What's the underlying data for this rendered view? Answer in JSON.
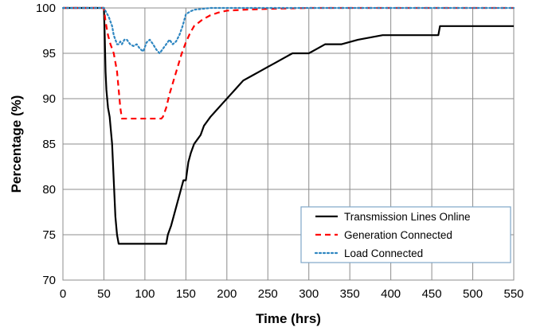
{
  "chart_data": {
    "type": "line",
    "xlabel": "Time (hrs)",
    "ylabel": "Percentage (%)",
    "xlim": [
      0,
      550
    ],
    "ylim": [
      70,
      100
    ],
    "xticks": [
      0,
      50,
      100,
      150,
      200,
      250,
      300,
      350,
      400,
      450,
      500,
      550
    ],
    "yticks": [
      70,
      75,
      80,
      85,
      90,
      95,
      100
    ],
    "grid": true,
    "legend_position": "bottom-right",
    "series": [
      {
        "name": "Transmission Lines Online",
        "color": "#000000",
        "dash": "solid",
        "x": [
          0,
          50,
          51,
          52,
          53,
          54,
          55,
          56,
          57,
          58,
          59,
          60,
          61,
          62,
          63,
          64,
          65,
          66,
          67,
          68,
          69,
          70,
          72,
          80,
          90,
          100,
          110,
          120,
          126,
          128,
          130,
          132,
          135,
          138,
          141,
          144,
          147,
          150,
          153,
          156,
          160,
          164,
          168,
          172,
          176,
          180,
          185,
          190,
          195,
          200,
          205,
          210,
          215,
          220,
          230,
          240,
          250,
          260,
          270,
          280,
          290,
          300,
          310,
          320,
          340,
          360,
          390,
          420,
          458,
          460,
          500,
          550
        ],
        "y": [
          100,
          100,
          97,
          93,
          91,
          90,
          89,
          88.5,
          88,
          87,
          86,
          85,
          83,
          81,
          79,
          77,
          76,
          75,
          74.5,
          74,
          74,
          74,
          74,
          74,
          74,
          74,
          74,
          74,
          74,
          75,
          75.5,
          76,
          77,
          78,
          79,
          80,
          81,
          81,
          83,
          84,
          85,
          85.5,
          86,
          87,
          87.5,
          88,
          88.5,
          89,
          89.5,
          90,
          90.5,
          91,
          91.5,
          92,
          92.5,
          93,
          93.5,
          94,
          94.5,
          95,
          95,
          95,
          95.5,
          96,
          96,
          96.5,
          97,
          97,
          97,
          98,
          98,
          98
        ]
      },
      {
        "name": "Generation Connected",
        "color": "#ff0000",
        "dash": "dashed",
        "x": [
          0,
          50,
          52,
          55,
          58,
          62,
          66,
          68,
          70,
          72,
          80,
          100,
          120,
          122,
          126,
          130,
          135,
          140,
          145,
          150,
          155,
          160,
          170,
          180,
          190,
          200,
          220,
          250,
          300,
          350,
          400,
          450,
          500,
          550
        ],
        "y": [
          100,
          100,
          98.5,
          97,
          96,
          95,
          93,
          91,
          89,
          87.8,
          87.8,
          87.8,
          87.8,
          88,
          89,
          90.5,
          92,
          93.5,
          95,
          96.2,
          97.2,
          98,
          98.7,
          99.2,
          99.5,
          99.7,
          99.8,
          99.9,
          100,
          100,
          100,
          100,
          100,
          100
        ]
      },
      {
        "name": "Load Connected",
        "color": "#2e86c1",
        "dash": "dotted",
        "x": [
          0,
          50,
          53,
          56,
          58,
          60,
          62,
          64,
          66,
          68,
          70,
          72,
          75,
          78,
          82,
          86,
          90,
          94,
          98,
          102,
          106,
          110,
          114,
          118,
          122,
          126,
          130,
          134,
          138,
          142,
          146,
          150,
          155,
          160,
          170,
          180,
          190,
          200,
          250,
          300,
          400,
          550
        ],
        "y": [
          100,
          100,
          99.5,
          99,
          98.5,
          98,
          97,
          96.5,
          96,
          96,
          96.3,
          96,
          96.5,
          96.5,
          96,
          95.8,
          96,
          95.5,
          95.2,
          96.2,
          96.5,
          96,
          95.4,
          95,
          95.5,
          96,
          96.5,
          96,
          96.3,
          97,
          98,
          99.3,
          99.6,
          99.8,
          99.9,
          100,
          100,
          100,
          100,
          100,
          100,
          100
        ]
      }
    ]
  }
}
